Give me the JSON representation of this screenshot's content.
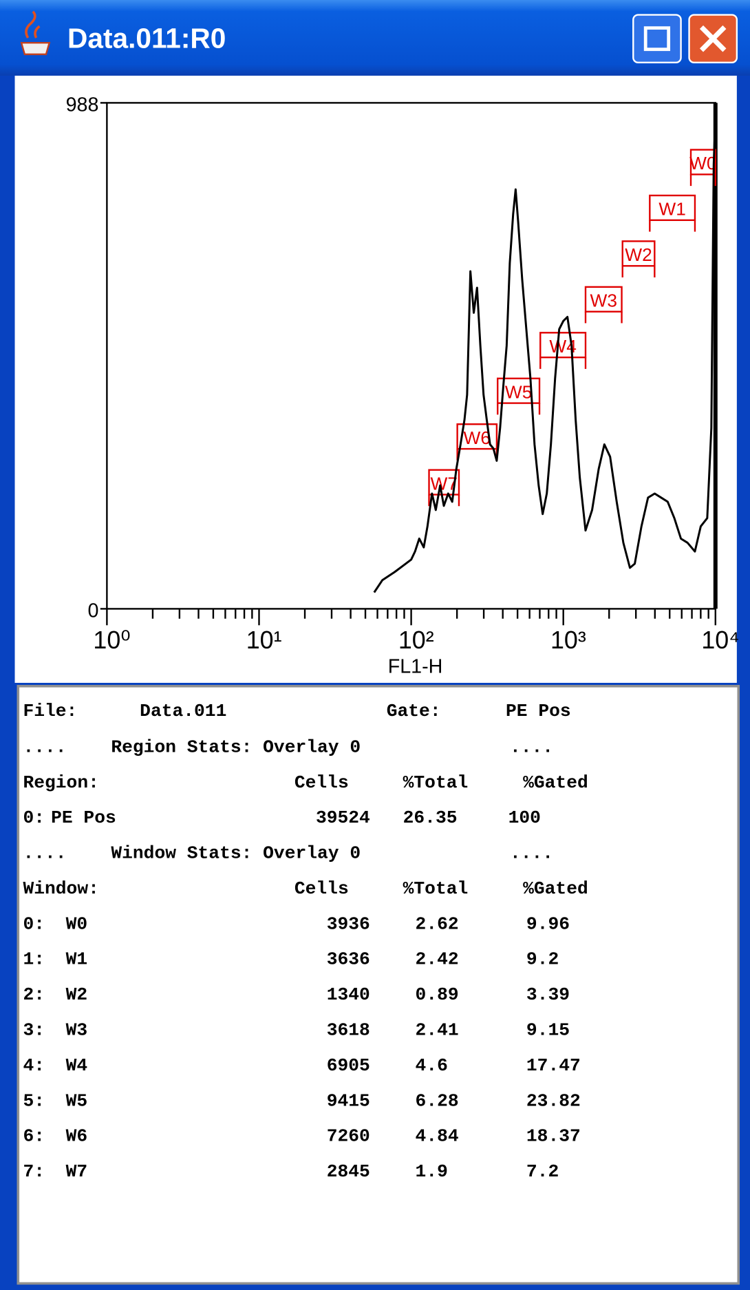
{
  "window": {
    "title": "Data.011:R0"
  },
  "chart_data": {
    "type": "line",
    "xlabel": "FL1-H",
    "log_x": true,
    "minor_ticks": true,
    "xlim": [
      1,
      10000
    ],
    "ylim": [
      0,
      988
    ],
    "xticks": [
      {
        "value": 1,
        "label": "10⁰"
      },
      {
        "value": 10,
        "label": "10¹"
      },
      {
        "value": 100,
        "label": "10²"
      },
      {
        "value": 1000,
        "label": "10³"
      },
      {
        "value": 10000,
        "label": "10⁴"
      }
    ],
    "yticks": [
      0,
      988
    ],
    "color": "#000000",
    "window_color": "#e00000",
    "x": [
      57.1,
      64.7,
      78.0,
      88.3,
      100,
      106,
      113,
      121,
      128,
      137,
      145,
      155,
      164,
      175,
      186,
      198,
      211,
      224,
      233,
      245,
      258,
      271,
      285,
      299,
      314,
      330,
      347,
      365,
      384,
      403,
      424,
      445,
      468,
      486,
      505,
      537,
      571,
      608,
      647,
      688,
      732,
      779,
      829,
      883,
      940,
      1000,
      1064,
      1132,
      1205,
      1282,
      1400,
      1546,
      1708,
      1862,
      2031,
      2244,
      2481,
      2742,
      2951,
      3263,
      3606,
      3984,
      4397,
      4854,
      5370,
      5929,
      6546,
      7328,
      7998,
      8831,
      9397,
      9747,
      9950
    ],
    "values": [
      32,
      56,
      72,
      84,
      96,
      112,
      137,
      120,
      161,
      225,
      193,
      241,
      201,
      225,
      209,
      273,
      321,
      369,
      418,
      659,
      578,
      627,
      514,
      418,
      369,
      321,
      313,
      289,
      353,
      434,
      514,
      675,
      771,
      819,
      755,
      643,
      546,
      450,
      321,
      241,
      185,
      225,
      321,
      450,
      546,
      562,
      570,
      514,
      369,
      257,
      153,
      193,
      273,
      321,
      297,
      209,
      129,
      80,
      88,
      161,
      217,
      225,
      217,
      209,
      177,
      137,
      129,
      112,
      161,
      177,
      353,
      868,
      948
    ],
    "windows": [
      {
        "label": "W0",
        "range": [
          6890,
          10000
        ]
      },
      {
        "label": "W1",
        "range": [
          3700,
          7330
        ]
      },
      {
        "label": "W2",
        "range": [
          2450,
          3980
        ]
      },
      {
        "label": "W3",
        "range": [
          1400,
          2420
        ]
      },
      {
        "label": "W4",
        "range": [
          706,
          1400
        ]
      },
      {
        "label": "W5",
        "range": [
          370,
          697
        ]
      },
      {
        "label": "W6",
        "range": [
          201,
          365
        ]
      },
      {
        "label": "W7",
        "range": [
          131,
          206
        ]
      }
    ]
  },
  "stats": {
    "file": [
      "File:",
      "Data.011"
    ],
    "gate": [
      "Gate:",
      "PE Pos"
    ],
    "region_heading": [
      "....",
      "Region Stats: Overlay 0",
      "...."
    ],
    "region_header": [
      "Region:",
      "Cells",
      "%Total",
      "%Gated"
    ],
    "regions": [
      [
        "0:",
        "PE Pos",
        39524,
        26.35,
        100
      ]
    ],
    "window_heading": [
      "....",
      "Window Stats: Overlay 0",
      "...."
    ],
    "window_header": [
      "Window:",
      "Cells",
      "%Total",
      "%Gated"
    ],
    "windows": [
      [
        "0:",
        "W0",
        3936,
        2.62,
        9.96
      ],
      [
        "1:",
        "W1",
        3636,
        2.42,
        9.2
      ],
      [
        "2:",
        "W2",
        1340,
        0.89,
        3.39
      ],
      [
        "3:",
        "W3",
        3618,
        2.41,
        9.15
      ],
      [
        "4:",
        "W4",
        6905,
        4.6,
        17.47
      ],
      [
        "5:",
        "W5",
        9415,
        6.28,
        23.82
      ],
      [
        "6:",
        "W6",
        7260,
        4.84,
        18.37
      ],
      [
        "7:",
        "W7",
        2845,
        1.9,
        7.2
      ]
    ]
  }
}
